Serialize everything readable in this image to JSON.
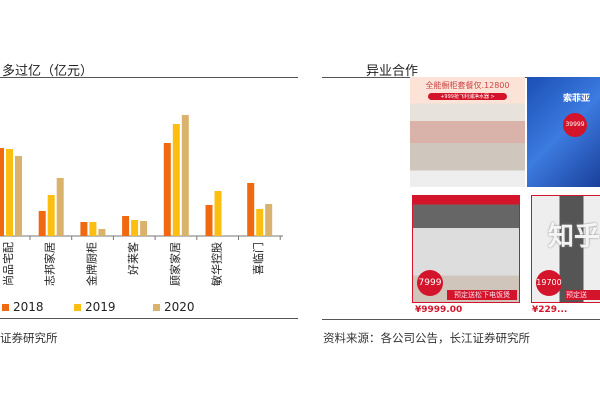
{
  "left": {
    "title": "多过亿（亿元）",
    "source": "证券研究所"
  },
  "right": {
    "title": "异业合作",
    "source": "资料来源：各公司公告，长江证券研究所",
    "cards": [
      {
        "headline": "全能橱柜套餐仅.12800",
        "sub": "+999抢飞利浦净水器 >"
      },
      {
        "headline": "索菲亚",
        "badge": "39999"
      },
      {
        "badge": "7999",
        "banner": "预定送松下电饭煲",
        "price": "¥9999.00"
      },
      {
        "badge": "19700",
        "banner": "预定送",
        "price": "¥229..."
      }
    ],
    "watermark": "知乎"
  },
  "colors": {
    "2018": "#f0680f",
    "2019": "#fdbe12",
    "2020": "#d9b26e"
  },
  "chart_data": {
    "type": "bar",
    "title": "多过亿（亿元）",
    "categories": [
      "尚品宅配",
      "志邦家居",
      "金牌厨柜",
      "好莱客",
      "顾家家居",
      "敏华控股",
      "喜临门"
    ],
    "series": [
      {
        "name": "2018",
        "values": [
          88,
          25,
          14,
          20,
          93,
          31,
          53
        ]
      },
      {
        "name": "2019",
        "values": [
          87,
          41,
          14,
          16,
          112,
          45,
          27
        ]
      },
      {
        "name": "2020",
        "values": [
          80,
          58,
          7,
          15,
          121,
          null,
          32
        ]
      }
    ],
    "legend": "bottom",
    "grid": false
  }
}
